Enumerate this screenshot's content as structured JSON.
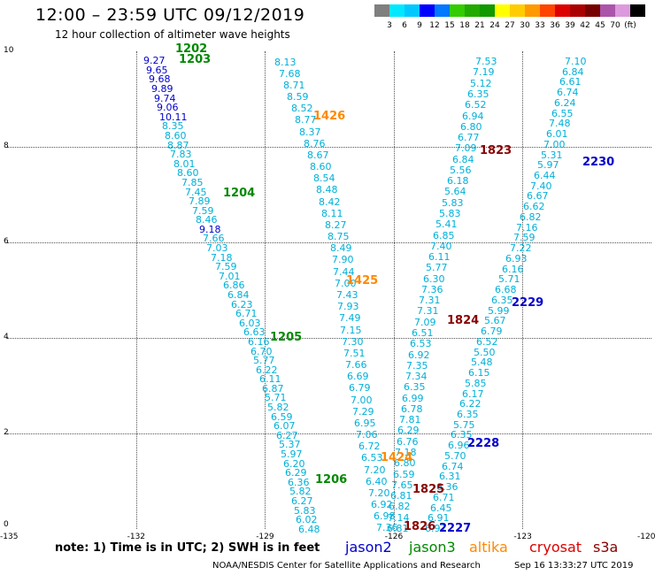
{
  "header": {
    "title": "12:00 – 23:59 UTC 09/12/2019",
    "subtitle": "12 hour collection of altimeter wave heights"
  },
  "colorbar": {
    "colors": [
      "#7f7f7f",
      "#00e8ff",
      "#00c8ff",
      "#0000ff",
      "#0078ff",
      "#33cc00",
      "#22aa00",
      "#119900",
      "#ffff00",
      "#ffcc00",
      "#ff9900",
      "#ff4400",
      "#dd0000",
      "#aa0000",
      "#770000",
      "#aa55aa",
      "#dd99dd",
      "#000000"
    ],
    "labels": [
      "3",
      "6",
      "9",
      "12",
      "15",
      "18",
      "21",
      "24",
      "27",
      "30",
      "33",
      "36",
      "39",
      "42",
      "45",
      "70",
      "(ft)"
    ]
  },
  "axes": {
    "x_ticks": [
      "-135",
      "-132",
      "-129",
      "-126",
      "-123",
      "-120"
    ],
    "y_ticks": [
      "10",
      "8",
      "6",
      "4",
      "2",
      "0"
    ]
  },
  "passes": [
    {
      "label": "1202",
      "color": "#008800"
    },
    {
      "label": "1203",
      "color": "#008800"
    },
    {
      "label": "1204",
      "color": "#008800"
    },
    {
      "label": "1205",
      "color": "#008800"
    },
    {
      "label": "1206",
      "color": "#008800"
    },
    {
      "label": "1426",
      "color": "#ff8800"
    },
    {
      "label": "1425",
      "color": "#ff8800"
    },
    {
      "label": "1424",
      "color": "#ff8800"
    },
    {
      "label": "1823",
      "color": "#880000"
    },
    {
      "label": "1824",
      "color": "#880000"
    },
    {
      "label": "1825",
      "color": "#880000"
    },
    {
      "label": "1826",
      "color": "#880000"
    },
    {
      "label": "2230",
      "color": "#0000cc"
    },
    {
      "label": "2229",
      "color": "#0000cc"
    },
    {
      "label": "2228",
      "color": "#0000cc"
    },
    {
      "label": "2227",
      "color": "#0000cc"
    }
  ],
  "tracks": [
    {
      "name": "jason3 track (1202-1206)",
      "values": [
        "9.27",
        "9.65",
        "9.68",
        "9.89",
        "9.74",
        "9.06",
        "10.11",
        "8.35",
        "8.60",
        "8.87",
        "7.83",
        "8.01",
        "8.60",
        "7.85",
        "7.45",
        "7.89",
        "7.59",
        "8.46",
        "9.18",
        "7.66",
        "7.03",
        "7.18",
        "7.59",
        "7.01",
        "6.86",
        "6.84",
        "6.23",
        "6.71",
        "6.03",
        "6.63",
        "6.16",
        "6.70",
        "5.77",
        "6.22",
        "6.11",
        "6.87",
        "5.71",
        "5.82",
        "6.59",
        "6.07",
        "6.27",
        "5.37",
        "5.97",
        "6.20",
        "6.29",
        "6.36",
        "5.82",
        "6.27",
        "5.83",
        "6.02",
        "6.48"
      ]
    },
    {
      "name": "altika track (1424-1426)",
      "values": [
        "8.13",
        "7.68",
        "8.71",
        "8.59",
        "8.52",
        "8.77",
        "8.37",
        "8.76",
        "8.67",
        "8.60",
        "8.54",
        "8.48",
        "8.42",
        "8.11",
        "8.27",
        "8.75",
        "8.49",
        "7.90",
        "7.44",
        "7.00",
        "7.43",
        "7.93",
        "7.49",
        "7.15",
        "7.30",
        "7.51",
        "7.66",
        "6.69",
        "6.79",
        "7.00",
        "7.29",
        "6.95",
        "7.06",
        "6.72",
        "6.53",
        "7.20",
        "6.40",
        "7.20",
        "6.92",
        "6.98",
        "7.36"
      ]
    },
    {
      "name": "cryosat track (1823-1826)",
      "values": [
        "7.53",
        "7.19",
        "5.12",
        "6.35",
        "6.52",
        "6.94",
        "6.80",
        "6.77",
        "7.09",
        "6.84",
        "5.56",
        "6.18",
        "5.64",
        "5.83",
        "5.83",
        "5.41",
        "6.85",
        "7.40",
        "6.11",
        "5.77",
        "6.30",
        "7.36",
        "7.31",
        "7.31",
        "7.09",
        "6.51",
        "6.53",
        "6.92",
        "7.35",
        "7.34",
        "6.35",
        "6.99",
        "6.78",
        "7.81",
        "6.29",
        "6.76",
        "7.18",
        "6.80",
        "6.59",
        "7.65",
        "6.81",
        "6.82",
        "7.14",
        "6.81"
      ]
    },
    {
      "name": "jason2 track (2227-2230)",
      "values": [
        "7.10",
        "6.84",
        "6.61",
        "6.74",
        "6.24",
        "6.55",
        "7.48",
        "6.01",
        "7.00",
        "5.31",
        "5.97",
        "6.44",
        "7.40",
        "6.67",
        "6.62",
        "6.82",
        "7.16",
        "7.59",
        "7.22",
        "6.93",
        "6.16",
        "5.71",
        "6.68",
        "6.35",
        "5.99",
        "5.67",
        "6.79",
        "6.52",
        "5.50",
        "5.48",
        "6.15",
        "5.85",
        "6.17",
        "6.22",
        "6.35",
        "5.75",
        "6.35",
        "6.96",
        "5.70",
        "6.74",
        "6.31",
        "6.36",
        "6.71",
        "6.45",
        "6.91",
        "6.97"
      ]
    }
  ],
  "footnote": "note: 1) Time is in UTC; 2) SWH is in feet",
  "legend": [
    {
      "label": "jason2",
      "color": "#0000cc"
    },
    {
      "label": "jason3",
      "color": "#008800"
    },
    {
      "label": "altika",
      "color": "#ff8800"
    },
    {
      "label": "cryosat",
      "color": "#dd0000"
    },
    {
      "label": "s3a",
      "color": "#880000"
    }
  ],
  "credit": "NOAA/NESDIS Center for Satellite Applications and Research",
  "timestamp": "Sep 16 13:33:27 UTC 2019"
}
